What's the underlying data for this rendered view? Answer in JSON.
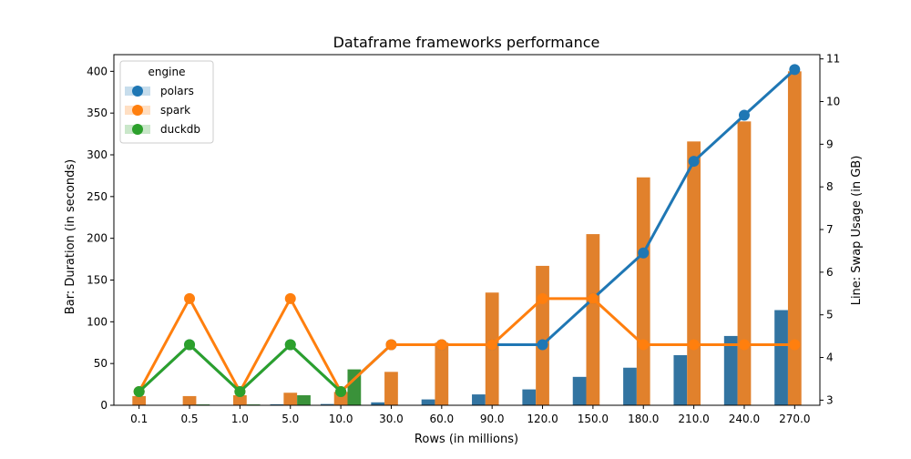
{
  "chart_data": {
    "type": "bar+line",
    "title": "Dataframe frameworks performance",
    "xlabel": "Rows (in millions)",
    "ylabel_left": "Bar: Duration (in seconds)",
    "ylabel_right": "Line: Swap Usage (in GB)",
    "categories": [
      "0.1",
      "0.5",
      "1.0",
      "5.0",
      "10.0",
      "30.0",
      "60.0",
      "90.0",
      "120.0",
      "150.0",
      "180.0",
      "210.0",
      "240.0",
      "270.0"
    ],
    "ylim_left": [
      0,
      420
    ],
    "yticks_left": [
      "0",
      "50",
      "100",
      "150",
      "200",
      "250",
      "300",
      "350",
      "400"
    ],
    "ylim_right": [
      2.88,
      11.1
    ],
    "yticks_right": [
      "3",
      "4",
      "5",
      "6",
      "7",
      "8",
      "9",
      "10",
      "11"
    ],
    "legend": {
      "title": "engine",
      "position": "top-left"
    },
    "colors": {
      "polars": "#1f77b4",
      "spark": "#ff7f0e",
      "duckdb": "#2ca02c"
    },
    "bar_colors": {
      "polars": "#3274a1",
      "spark": "#e1812c",
      "duckdb": "#3a923a"
    },
    "bars": [
      {
        "name": "polars",
        "values": [
          0.3,
          0.3,
          0.5,
          1.2,
          1.5,
          3.5,
          7,
          13,
          19,
          34,
          45,
          60,
          83,
          114
        ]
      },
      {
        "name": "spark",
        "values": [
          11,
          11,
          12,
          15,
          16,
          40,
          75,
          135,
          167,
          205,
          273,
          316,
          340,
          400
        ]
      },
      {
        "name": "duckdb",
        "values": [
          0.3,
          1,
          1,
          12,
          43,
          null,
          null,
          null,
          null,
          null,
          null,
          null,
          null,
          null
        ]
      }
    ],
    "lines": [
      {
        "name": "polars",
        "values": [
          3.2,
          4.3,
          3.2,
          4.3,
          3.2,
          4.3,
          4.3,
          4.3,
          4.3,
          5.38,
          6.45,
          8.6,
          9.68,
          10.75
        ]
      },
      {
        "name": "spark",
        "values": [
          3.2,
          5.38,
          3.2,
          5.38,
          3.2,
          4.3,
          4.3,
          4.3,
          5.38,
          5.38,
          4.3,
          4.3,
          4.3,
          4.3
        ]
      },
      {
        "name": "duckdb",
        "values": [
          3.2,
          4.3,
          3.2,
          4.3,
          3.2,
          null,
          null,
          null,
          null,
          null,
          null,
          null,
          null,
          null
        ]
      }
    ]
  }
}
